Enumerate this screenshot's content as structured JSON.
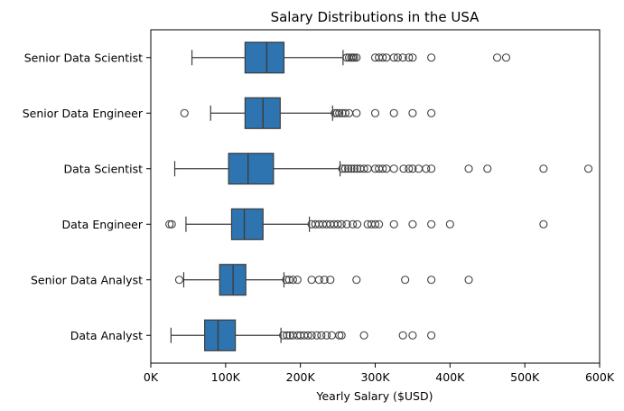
{
  "chart_data": {
    "type": "box",
    "orientation": "horizontal",
    "title": "Salary Distributions in the USA",
    "xlabel": "Yearly Salary ($USD)",
    "ylabel": "",
    "xlim": [
      0,
      600000
    ],
    "x_ticks": [
      0,
      100000,
      200000,
      300000,
      400000,
      500000,
      600000
    ],
    "x_tick_labels": [
      "0K",
      "100K",
      "200K",
      "300K",
      "400K",
      "500K",
      "600K"
    ],
    "grid": false,
    "legend": "none",
    "box_color": "#2e74b0",
    "line_color": "#3d3d3d",
    "series": [
      {
        "category": "Senior Data Scientist",
        "whisker_low": 55000,
        "q1": 126000,
        "median": 155000,
        "q3": 178000,
        "whisker_high": 257000,
        "outliers": [
          262000,
          265000,
          268000,
          270000,
          272000,
          275000,
          300000,
          305000,
          310000,
          315000,
          325000,
          330000,
          337000,
          345000,
          350000,
          375000,
          463000,
          475000
        ]
      },
      {
        "category": "Senior Data Engineer",
        "whisker_low": 80000,
        "q1": 126000,
        "median": 150000,
        "q3": 173000,
        "whisker_high": 243000,
        "outliers": [
          45000,
          246000,
          249000,
          252000,
          256000,
          260000,
          265000,
          275000,
          300000,
          325000,
          350000,
          375000
        ]
      },
      {
        "category": "Data Scientist",
        "whisker_low": 32000,
        "q1": 104000,
        "median": 130000,
        "q3": 164000,
        "whisker_high": 253000,
        "outliers": [
          256000,
          260000,
          264000,
          268000,
          272000,
          276000,
          280000,
          285000,
          290000,
          300000,
          305000,
          310000,
          315000,
          325000,
          338000,
          345000,
          350000,
          358000,
          368000,
          375000,
          425000,
          450000,
          525000,
          585000
        ]
      },
      {
        "category": "Data Engineer",
        "whisker_low": 47000,
        "q1": 108000,
        "median": 125000,
        "q3": 150000,
        "whisker_high": 212000,
        "outliers": [
          25000,
          28000,
          215000,
          220000,
          225000,
          230000,
          235000,
          240000,
          245000,
          250000,
          255000,
          262000,
          270000,
          276000,
          290000,
          295000,
          300000,
          305000,
          325000,
          350000,
          375000,
          400000,
          525000
        ]
      },
      {
        "category": "Senior Data Analyst",
        "whisker_low": 44000,
        "q1": 92000,
        "median": 110000,
        "q3": 127000,
        "whisker_high": 178000,
        "outliers": [
          38000,
          181000,
          185000,
          190000,
          196000,
          215000,
          225000,
          232000,
          240000,
          275000,
          340000,
          375000,
          425000
        ]
      },
      {
        "category": "Data Analyst",
        "whisker_low": 27000,
        "q1": 72000,
        "median": 90000,
        "q3": 113000,
        "whisker_high": 174000,
        "outliers": [
          177000,
          182000,
          186000,
          190000,
          196000,
          200000,
          205000,
          210000,
          215000,
          222000,
          228000,
          235000,
          242000,
          252000,
          255000,
          285000,
          337000,
          350000,
          375000
        ]
      }
    ]
  }
}
